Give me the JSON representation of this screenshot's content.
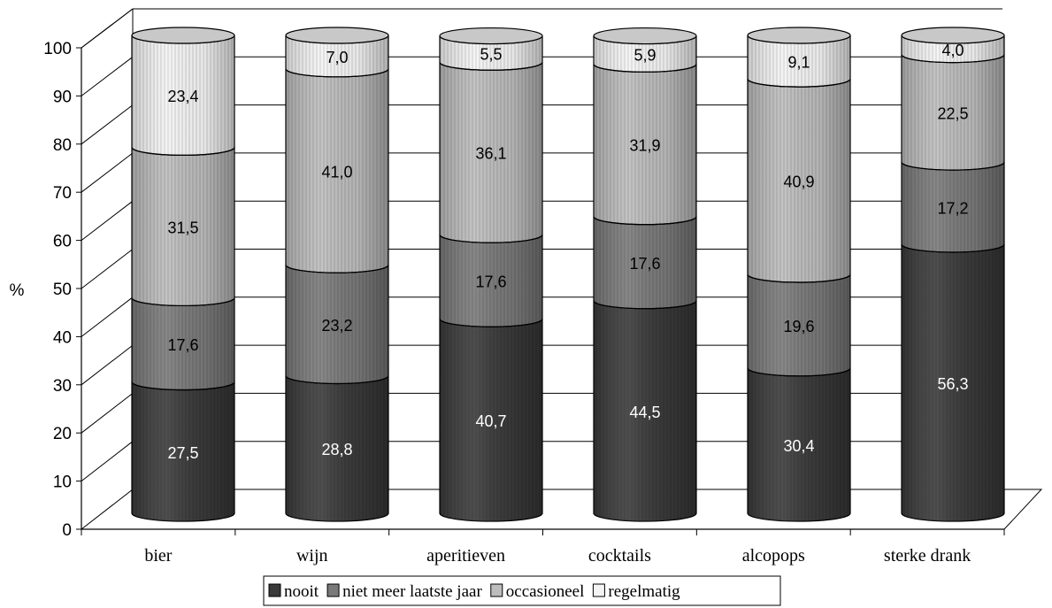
{
  "chart_data": {
    "type": "bar",
    "stacked": true,
    "style": "3d-cylinder",
    "categories": [
      "bier",
      "wijn",
      "aperitieven",
      "cocktails",
      "alcopops",
      "sterke drank"
    ],
    "series": [
      {
        "name": "nooit",
        "color": "#3a3a3a",
        "values": [
          27.5,
          28.8,
          40.7,
          44.5,
          30.4,
          56.3
        ],
        "labels": [
          "27,5",
          "28,8",
          "40,7",
          "44,5",
          "30,4",
          "56,3"
        ],
        "label_color": "#ffffff"
      },
      {
        "name": "niet meer laatste jaar",
        "color": "#7a7a7a",
        "values": [
          17.6,
          23.2,
          17.6,
          17.6,
          19.6,
          17.2
        ],
        "labels": [
          "17,6",
          "23,2",
          "17,6",
          "17,6",
          "19,6",
          "17,2"
        ],
        "label_color": "#000000"
      },
      {
        "name": "occasioneel",
        "color": "#bdbdbd",
        "values": [
          31.5,
          41.0,
          36.1,
          31.9,
          40.9,
          22.5
        ],
        "labels": [
          "31,5",
          "41,0",
          "36,1",
          "31,9",
          "40,9",
          "22,5"
        ],
        "label_color": "#000000"
      },
      {
        "name": "regelmatig",
        "color": "#f4f4f4",
        "values": [
          23.4,
          7.0,
          5.5,
          5.9,
          9.1,
          4.0
        ],
        "labels": [
          "23,4",
          "7,0",
          "5,5",
          "5,9",
          "9,1",
          "4,0"
        ],
        "label_color": "#000000"
      }
    ],
    "ylabel": "%",
    "ylim": [
      0,
      100
    ],
    "yticks": [
      "0",
      "10",
      "20",
      "30",
      "40",
      "50",
      "60",
      "70",
      "80",
      "90",
      "100"
    ],
    "grid": true,
    "legend_position": "bottom"
  }
}
